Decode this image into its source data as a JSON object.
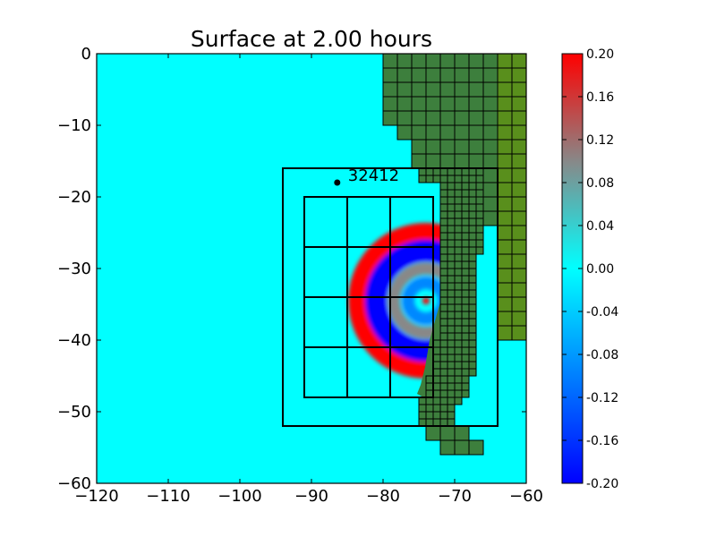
{
  "chart_data": {
    "type": "heatmap",
    "title": "Surface at 2.00 hours",
    "xlabel": "",
    "ylabel": "",
    "xlim": [
      -120,
      -60
    ],
    "ylim": [
      -60,
      0
    ],
    "x_ticks": [
      -120,
      -110,
      -100,
      -90,
      -80,
      -70,
      -60
    ],
    "x_tick_labels": [
      "−120",
      "−110",
      "−100",
      "−90",
      "−80",
      "−70",
      "−60"
    ],
    "y_ticks": [
      0,
      -10,
      -20,
      -30,
      -40,
      -50,
      -60
    ],
    "y_tick_labels": [
      "0",
      "−10",
      "−20",
      "−30",
      "−40",
      "−50",
      "−60"
    ],
    "colorbar": {
      "range": [
        -0.2,
        0.2
      ],
      "ticks": [
        0.2,
        0.16,
        0.12,
        0.08,
        0.04,
        0.0,
        -0.04,
        -0.08,
        -0.12,
        -0.16,
        -0.2
      ],
      "tick_labels": [
        "0.20",
        "0.16",
        "0.12",
        "0.08",
        "0.04",
        "0.00",
        "-0.04",
        "-0.08",
        "-0.12",
        "-0.16",
        "-0.20"
      ],
      "colors": [
        "#0000ff",
        "#00ffff",
        "#888888",
        "#ff0000"
      ]
    },
    "gauge": {
      "label": "32412",
      "x": -86.4,
      "y": -18.0
    },
    "epicenter": {
      "x": -74.0,
      "y": -34.5
    },
    "wave_rings": [
      {
        "radius_deg": 9.5,
        "amplitude": 0.2
      },
      {
        "radius_deg": 7.0,
        "amplitude": -0.2
      },
      {
        "radius_deg": 4.5,
        "amplitude": 0.06
      },
      {
        "radius_deg": 2.5,
        "amplitude": -0.12
      }
    ],
    "refinement_boxes": [
      {
        "level": 2,
        "x": [
          -94,
          -64
        ],
        "y": [
          -52,
          -16
        ]
      },
      {
        "level": 3,
        "x": [
          -91,
          -73
        ],
        "y": [
          -48,
          -20
        ]
      }
    ],
    "level3_grid_lines": {
      "x": [
        -91,
        -85,
        -79,
        -73
      ],
      "y": [
        -20,
        -27,
        -34,
        -41,
        -48
      ]
    },
    "land_colors": [
      "#3d7f3d",
      "#598f1c"
    ],
    "ocean_color": "#00ffff"
  }
}
